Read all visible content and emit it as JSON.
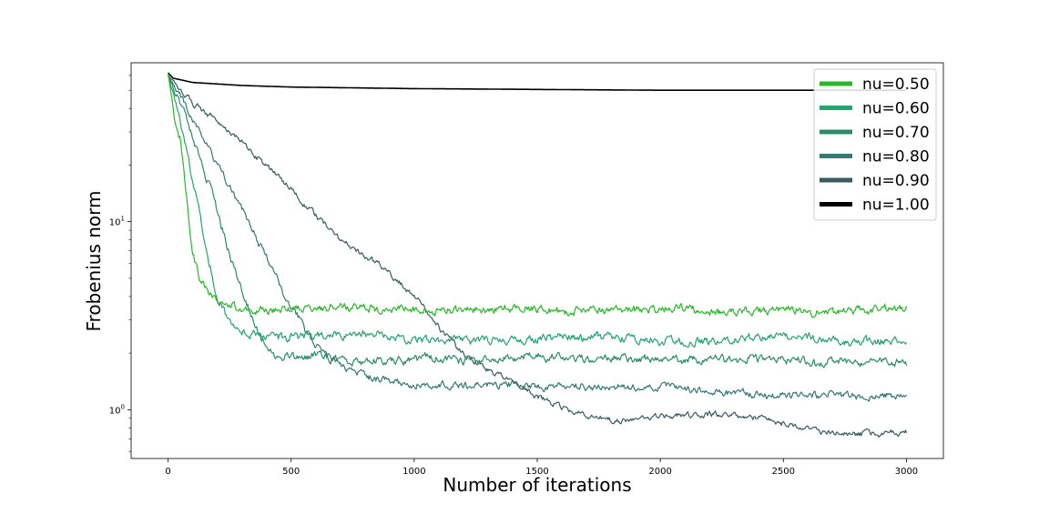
{
  "chart_data": {
    "type": "line",
    "title": "",
    "xlabel": "Number of iterations",
    "ylabel": "Frobenius norm",
    "xlim": [
      -150,
      3150
    ],
    "ylim": [
      0.55,
      70
    ],
    "yscale": "log",
    "grid": false,
    "legend_position": "top-right",
    "x_ticks": [
      {
        "value": 0,
        "label": "0"
      },
      {
        "value": 500,
        "label": "500"
      },
      {
        "value": 1000,
        "label": "1000"
      },
      {
        "value": 1500,
        "label": "1500"
      },
      {
        "value": 2000,
        "label": "2000"
      },
      {
        "value": 2500,
        "label": "2500"
      },
      {
        "value": 3000,
        "label": "3000"
      }
    ],
    "y_ticks": [
      {
        "value": 1,
        "base": "10",
        "exp": "0"
      },
      {
        "value": 10,
        "base": "10",
        "exp": "1"
      }
    ],
    "series": [
      {
        "name": "nu=0.50",
        "color": "#2ab72a",
        "x": [
          0,
          25,
          50,
          75,
          100,
          130,
          160,
          200,
          250,
          300,
          400,
          500,
          700,
          1000,
          1500,
          2000,
          2500,
          3000
        ],
        "y": [
          62,
          36,
          28,
          14,
          7,
          5,
          4.2,
          3.8,
          3.6,
          3.4,
          3.3,
          3.5,
          3.5,
          3.4,
          3.4,
          3.4,
          3.4,
          3.5
        ],
        "noise": 0.05
      },
      {
        "name": "nu=0.60",
        "color": "#25a46d",
        "x": [
          0,
          40,
          80,
          120,
          160,
          200,
          250,
          300,
          400,
          500,
          700,
          1000,
          1500,
          2000,
          2500,
          3000
        ],
        "y": [
          60,
          38,
          22,
          13,
          7,
          4,
          3,
          2.6,
          2.4,
          2.4,
          2.5,
          2.4,
          2.4,
          2.4,
          2.4,
          2.4
        ],
        "noise": 0.05
      },
      {
        "name": "nu=0.70",
        "color": "#2b8b6b",
        "x": [
          0,
          50,
          100,
          150,
          200,
          250,
          300,
          350,
          400,
          450,
          500,
          700,
          1000,
          1500,
          2000,
          2500,
          3000
        ],
        "y": [
          60,
          42,
          28,
          18,
          11,
          6.5,
          4.2,
          2.8,
          2.1,
          1.9,
          1.9,
          1.85,
          1.85,
          1.85,
          1.85,
          1.8,
          1.8
        ],
        "noise": 0.05
      },
      {
        "name": "nu=0.80",
        "color": "#357875",
        "x": [
          0,
          50,
          100,
          150,
          200,
          300,
          400,
          500,
          600,
          700,
          800,
          1000,
          1500,
          2000,
          2500,
          3000
        ],
        "y": [
          60,
          46,
          35,
          27,
          21,
          12,
          6.5,
          3.6,
          2.2,
          1.7,
          1.5,
          1.4,
          1.3,
          1.3,
          1.2,
          1.2
        ],
        "noise": 0.045
      },
      {
        "name": "nu=0.90",
        "color": "#395c61",
        "x": [
          0,
          100,
          200,
          300,
          400,
          500,
          600,
          700,
          800,
          900,
          1000,
          1100,
          1200,
          1300,
          1400,
          1500,
          1600,
          1700,
          1800,
          2000,
          2200,
          2400,
          2600,
          2800,
          3000
        ],
        "y": [
          60,
          42,
          34,
          26,
          20,
          15,
          11,
          8,
          6.5,
          5.3,
          4.0,
          2.8,
          2.0,
          1.6,
          1.4,
          1.2,
          1.05,
          0.95,
          0.88,
          0.9,
          0.95,
          0.9,
          0.8,
          0.75,
          0.76
        ],
        "noise": 0.035
      },
      {
        "name": "nu=1.00",
        "color": "#000000",
        "x": [
          0,
          20,
          100,
          300,
          500,
          1000,
          1500,
          2000,
          2500,
          3000
        ],
        "y": [
          62,
          58,
          55,
          53,
          52,
          51,
          50.5,
          50,
          50,
          50
        ],
        "noise": 0
      }
    ]
  }
}
